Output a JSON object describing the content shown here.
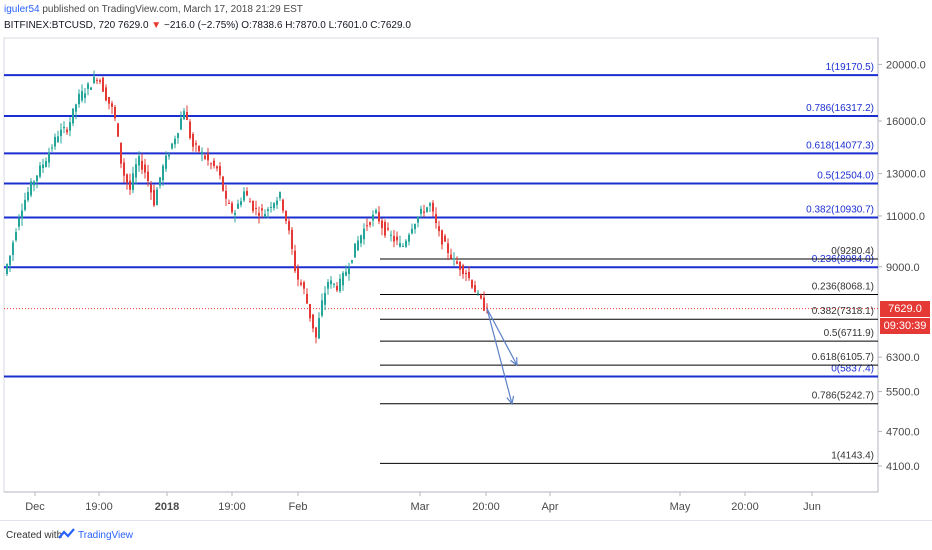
{
  "header": {
    "username": "iguler54",
    "published_text": " published on TradingView.com, March 17, 2018 21:29 EST",
    "symbol": "BITFINEX:BTCUSD, 720",
    "last": "7629.0",
    "down_arrow": "▼",
    "change": "−216.0 (−2.75%)",
    "open": "O:7838.6",
    "high": "H:7870.0",
    "low": "L:7601.0",
    "close": "C:7629.0"
  },
  "price_tags": {
    "last_price": "7629.0",
    "countdown": "09:30:39"
  },
  "footer": {
    "created_with": "Created with",
    "brand": "TradingView"
  },
  "colors": {
    "up": "#26a69a",
    "down": "#e53935",
    "fib_blue": "#1b2fd1",
    "fib_black": "#000000",
    "arrow": "#5b80c8"
  },
  "chart_data": {
    "type": "candlestick",
    "title": "BITFINEX:BTCUSD, 720",
    "y_axis": {
      "scale": "log",
      "ticks": [
        "20000.0",
        "16000.0",
        "13000.0",
        "11000.0",
        "9000.0",
        "6300.0",
        "5500.0",
        "4700.0",
        "4100.0"
      ],
      "range": [
        3700,
        22200
      ]
    },
    "x_axis": {
      "ticks": [
        "Dec",
        "19:00",
        "2018",
        "19:00",
        "Feb",
        "Mar",
        "20:00",
        "Apr",
        "May",
        "20:00",
        "Jun"
      ]
    },
    "fib_long": {
      "color": "blue",
      "levels": [
        {
          "label": "1(19170.5)",
          "price": 19170.5
        },
        {
          "label": "0.786(16317.2)",
          "price": 16317.2
        },
        {
          "label": "0.618(14077.3)",
          "price": 14077.3
        },
        {
          "label": "0.5(12504.0)",
          "price": 12504.0
        },
        {
          "label": "0.382(10930.7)",
          "price": 10930.7
        },
        {
          "label": "0.236(8984.0)",
          "price": 8984.0
        },
        {
          "label": "0(5837.4)",
          "price": 5837.4
        }
      ]
    },
    "fib_short": {
      "color": "black",
      "levels": [
        {
          "label": "0(9280.4)",
          "price": 9280.4
        },
        {
          "label": "0.236(8068.1)",
          "price": 8068.1
        },
        {
          "label": "0.382(7318.1)",
          "price": 7318.1
        },
        {
          "label": "0.5(6711.9)",
          "price": 6711.9
        },
        {
          "label": "0.618(6105.7)",
          "price": 6105.7
        },
        {
          "label": "0.786(5242.7)",
          "price": 5242.7
        },
        {
          "label": "1(4143.4)",
          "price": 4143.4
        }
      ]
    },
    "last_price": 7629.0,
    "price_path": [
      [
        0,
        8100
      ],
      [
        12,
        9400
      ],
      [
        22,
        11200
      ],
      [
        34,
        12500
      ],
      [
        48,
        13800
      ],
      [
        60,
        15200
      ],
      [
        70,
        15600
      ],
      [
        80,
        17500
      ],
      [
        90,
        18300
      ],
      [
        100,
        19170
      ],
      [
        108,
        17600
      ],
      [
        116,
        16500
      ],
      [
        124,
        13200
      ],
      [
        132,
        12200
      ],
      [
        140,
        13800
      ],
      [
        148,
        13000
      ],
      [
        156,
        11600
      ],
      [
        164,
        13200
      ],
      [
        172,
        14300
      ],
      [
        180,
        15500
      ],
      [
        186,
        16800
      ],
      [
        194,
        14500
      ],
      [
        202,
        14200
      ],
      [
        212,
        13500
      ],
      [
        220,
        13200
      ],
      [
        228,
        11600
      ],
      [
        236,
        11100
      ],
      [
        246,
        12100
      ],
      [
        256,
        11300
      ],
      [
        266,
        11100
      ],
      [
        274,
        11600
      ],
      [
        282,
        11900
      ],
      [
        290,
        10500
      ],
      [
        298,
        8700
      ],
      [
        306,
        8200
      ],
      [
        312,
        7400
      ],
      [
        318,
        6800
      ],
      [
        324,
        7800
      ],
      [
        330,
        8500
      ],
      [
        340,
        8300
      ],
      [
        350,
        9000
      ],
      [
        358,
        9800
      ],
      [
        368,
        10600
      ],
      [
        378,
        11100
      ],
      [
        386,
        10400
      ],
      [
        394,
        10100
      ],
      [
        404,
        9700
      ],
      [
        414,
        10600
      ],
      [
        424,
        11200
      ],
      [
        432,
        11500
      ],
      [
        440,
        10300
      ],
      [
        448,
        9700
      ],
      [
        456,
        9200
      ],
      [
        462,
        9000
      ],
      [
        468,
        8800
      ],
      [
        474,
        8400
      ],
      [
        480,
        8000
      ],
      [
        487,
        7629
      ]
    ]
  }
}
